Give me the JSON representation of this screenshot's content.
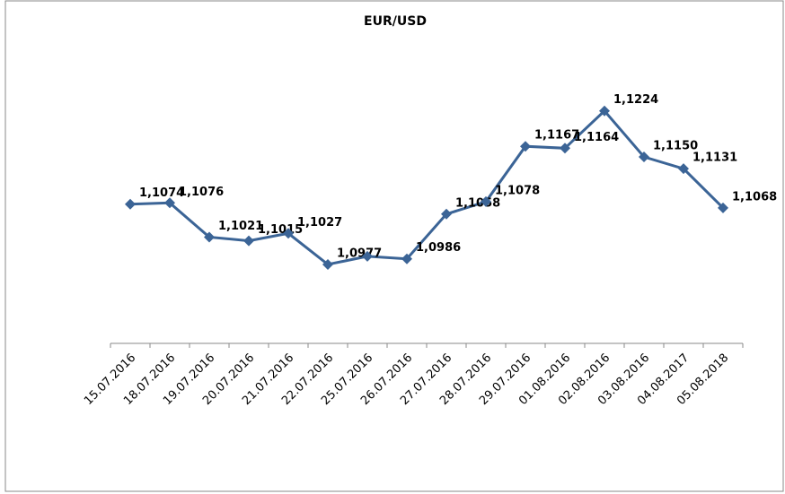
{
  "chart_data": {
    "type": "line",
    "title": "EUR/USD",
    "categories": [
      "15.07.2016",
      "18.07.2016",
      "19.07.2016",
      "20.07.2016",
      "21.07.2016",
      "22.07.2016",
      "25.07.2016",
      "26.07.2016",
      "27.07.2016",
      "28.07.2016",
      "29.07.2016",
      "01.08.2016",
      "02.08.2016",
      "03.08.2016",
      "04.08.2017",
      "05.08.2018"
    ],
    "series": [
      {
        "color": "#3b6496",
        "values": [
          1.1074,
          1.1076,
          1.1021,
          1.1015,
          1.1027,
          1.0977,
          1.099,
          1.0986,
          1.1058,
          1.1078,
          1.1167,
          1.1164,
          1.1224,
          1.115,
          1.1131,
          1.1068
        ],
        "value_labels": [
          "1,1074",
          "1,1076",
          "1,1021",
          "1,1015",
          "1,1027",
          "1,0977",
          null,
          "1,0986",
          "1,1058",
          "1,1078",
          "1,1167",
          "1,1164",
          "1,1224",
          "1,1150",
          "1,1131",
          "1,1068"
        ]
      }
    ],
    "ylim": [
      1.085,
      1.13
    ],
    "grid": false
  }
}
